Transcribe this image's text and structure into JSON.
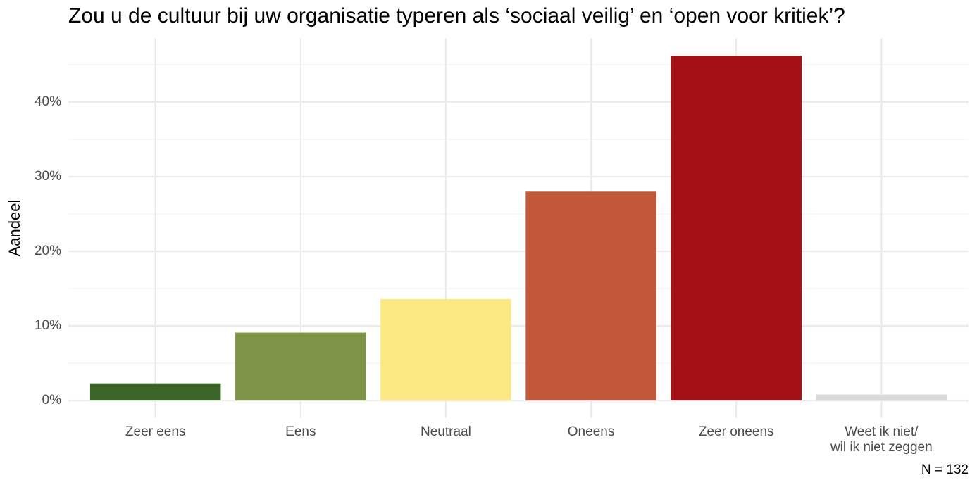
{
  "chart_data": {
    "type": "bar",
    "title": "Zou u de cultuur bij uw organisatie typeren als ‘sociaal veilig’ en ‘open voor kritiek’?",
    "y_label": "Aandeel",
    "caption": "N = 132",
    "categories": [
      "Zeer eens",
      "Eens",
      "Neutraal",
      "Oneens",
      "Zeer oneens",
      "Weet ik niet/\nwil ik niet zeggen"
    ],
    "values": [
      2.3,
      9.1,
      13.6,
      28.0,
      46.2,
      0.8
    ],
    "colors": [
      "#3b6428",
      "#7e9346",
      "#fde984",
      "#c2583a",
      "#a31016",
      "#d9d9d9"
    ],
    "ylim": [
      -2.31,
      48.5
    ],
    "yticks": [
      {
        "value": 0,
        "label": "0%"
      },
      {
        "value": 10,
        "label": "10%"
      },
      {
        "value": 20,
        "label": "20%"
      },
      {
        "value": 30,
        "label": "30%"
      },
      {
        "value": 40,
        "label": "40%"
      }
    ],
    "minor_yticks": [
      5,
      15,
      25,
      35,
      45
    ],
    "grid": true
  }
}
